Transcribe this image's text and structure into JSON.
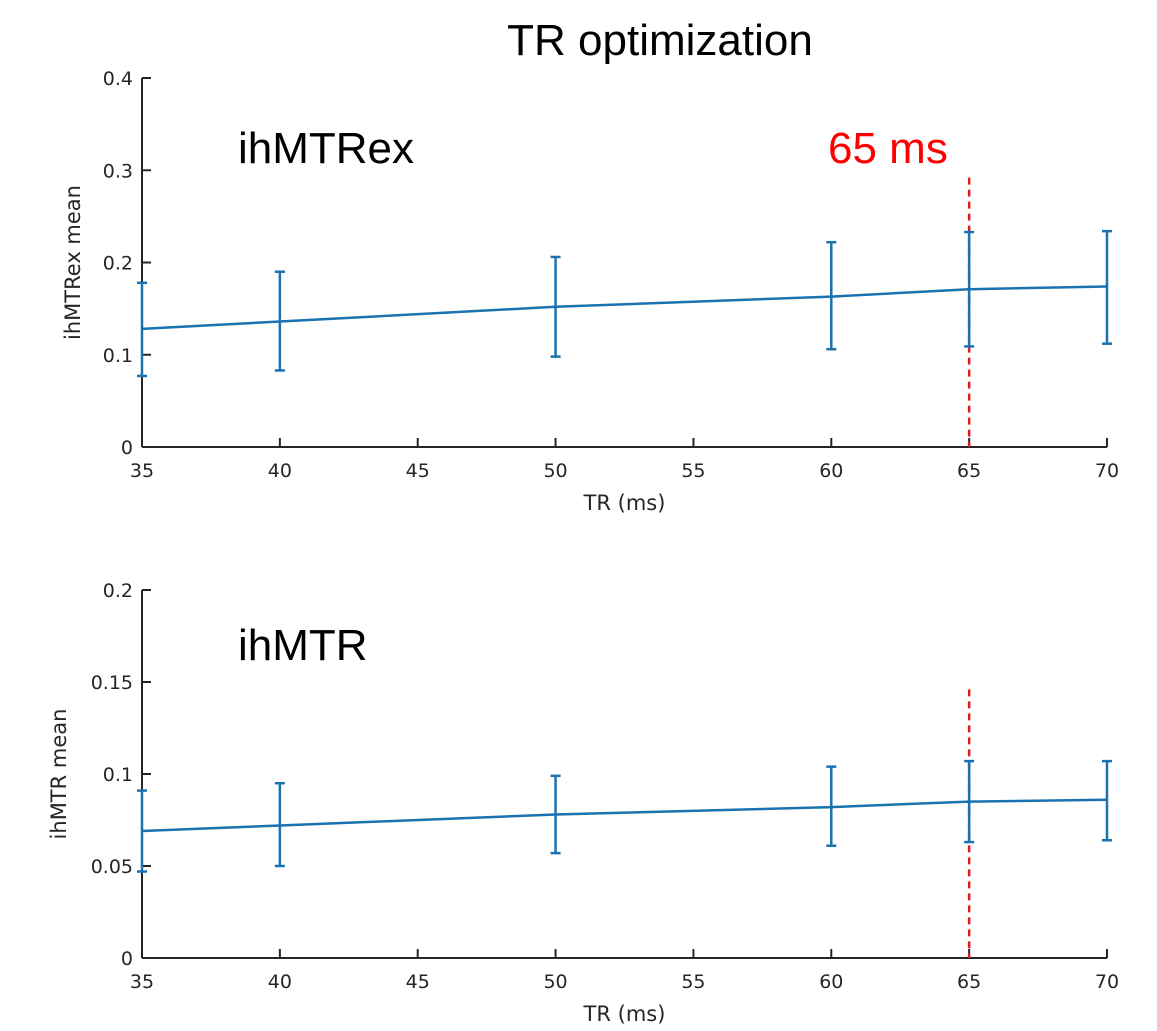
{
  "figure": {
    "title": "TR optimization",
    "line_color": "#1a72b0",
    "marker_color": "#e01b1b",
    "axis_color": "#262626"
  },
  "chart_data": [
    {
      "type": "line",
      "panel_label": "ihMTRex",
      "xlabel": "TR (ms)",
      "ylabel": "ihMTRex mean",
      "xlim": [
        35,
        70
      ],
      "ylim": [
        0,
        0.4
      ],
      "xticks": [
        "35",
        "40",
        "45",
        "50",
        "55",
        "60",
        "65",
        "70"
      ],
      "yticks": [
        "0",
        "0.1",
        "0.2",
        "0.3",
        "0.4"
      ],
      "x": [
        35,
        40,
        50,
        60,
        65,
        70
      ],
      "y": [
        0.128,
        0.136,
        0.152,
        0.163,
        0.171,
        0.174
      ],
      "err_low": [
        0.077,
        0.083,
        0.098,
        0.106,
        0.109,
        0.112
      ],
      "err_high": [
        0.178,
        0.19,
        0.206,
        0.222,
        0.233,
        0.234
      ],
      "vline": {
        "x": 65,
        "y_top": 0.292,
        "label": "65 ms"
      }
    },
    {
      "type": "line",
      "panel_label": "ihMTR",
      "xlabel": "TR (ms)",
      "ylabel": "ihMTR mean",
      "xlim": [
        35,
        70
      ],
      "ylim": [
        0,
        0.2
      ],
      "xticks": [
        "35",
        "40",
        "45",
        "50",
        "55",
        "60",
        "65",
        "70"
      ],
      "yticks": [
        "0",
        "0.05",
        "0.1",
        "0.15",
        "0.2"
      ],
      "x": [
        35,
        40,
        50,
        60,
        65,
        70
      ],
      "y": [
        0.069,
        0.072,
        0.078,
        0.082,
        0.085,
        0.086
      ],
      "err_low": [
        0.047,
        0.05,
        0.057,
        0.061,
        0.063,
        0.064
      ],
      "err_high": [
        0.091,
        0.095,
        0.099,
        0.104,
        0.107,
        0.107
      ],
      "vline": {
        "x": 65,
        "y_top": 0.146
      }
    }
  ]
}
